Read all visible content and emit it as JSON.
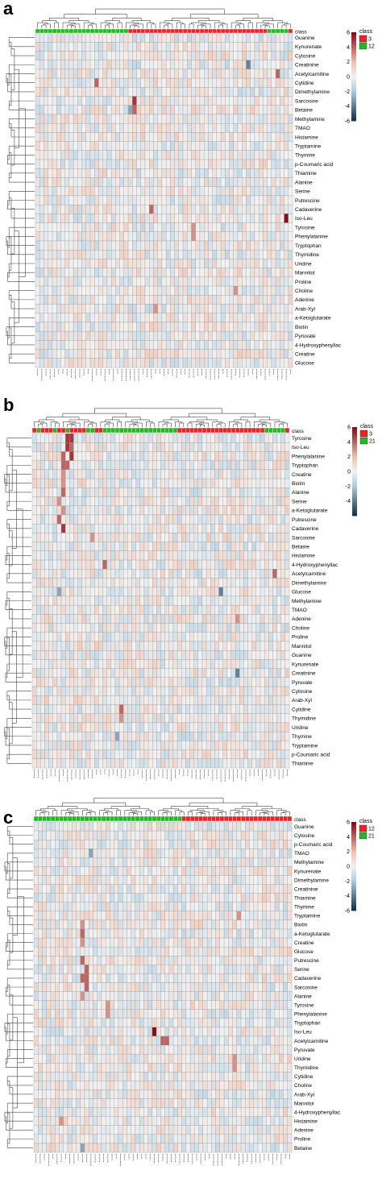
{
  "colors": {
    "scale_high": "#8b0a1a",
    "scale_mid": "#f2f2f2",
    "scale_low": "#17354a",
    "class_red": "#e8262a",
    "class_green": "#26b626",
    "grid": "#9a9a9a"
  },
  "legend": {
    "title": "class"
  },
  "panels": [
    {
      "letter": "a",
      "legend_items": [
        "3",
        "12"
      ],
      "scale_ticks": [
        "6",
        "4",
        "2",
        "0",
        "-2",
        "-4",
        "-6"
      ],
      "chart_data": {
        "type": "heatmap",
        "n_columns": 61,
        "class_bar": [
          "green",
          "green",
          "green",
          "green",
          "green",
          "green",
          "green",
          "green",
          "green",
          "green",
          "green",
          "green",
          "green",
          "green",
          "green",
          "green",
          "green",
          "green",
          "green",
          "green",
          "green",
          "green",
          "red",
          "red",
          "red",
          "red",
          "red",
          "red",
          "red",
          "red",
          "red",
          "red",
          "red",
          "red",
          "red",
          "red",
          "red",
          "red",
          "red",
          "red",
          "red",
          "red",
          "red",
          "red",
          "red",
          "red",
          "red",
          "red",
          "red",
          "red",
          "red",
          "red",
          "red",
          "red",
          "red",
          "green",
          "green",
          "green",
          "green",
          "green",
          "red"
        ],
        "rows": [
          "Guanine",
          "Kynurenate",
          "Cytosine",
          "Creatinine",
          "Acetylcarnitine",
          "Cytidine",
          "Dimethylamine",
          "Sarcosine",
          "Betaine",
          "Methylamine",
          "TMAO",
          "Histamine",
          "Tryptamine",
          "Thymine",
          "p-Coumaric acid",
          "Thiamine",
          "Alanine",
          "Serine",
          "Putrescine",
          "Cadaverine",
          "Iso-Leu",
          "Tyrosine",
          "Phenylalanine",
          "Tryptophan",
          "Thymidine",
          "Uridine",
          "Mannitol",
          "Proline",
          "Choline",
          "Adenine",
          "Arab-Xyl",
          "a-Ketoglutarate",
          "Biotin",
          "Pyruvate",
          "4-Hydroxyphenyllac",
          "Creatine",
          "Glucose"
        ],
        "hot_cells": [
          [
            4,
            57,
            4
          ],
          [
            5,
            14,
            4
          ],
          [
            7,
            23,
            5
          ],
          [
            8,
            23,
            4
          ],
          [
            20,
            59,
            6
          ],
          [
            19,
            27,
            4
          ],
          [
            21,
            37,
            3
          ],
          [
            22,
            37,
            3
          ],
          [
            28,
            47,
            3
          ],
          [
            30,
            28,
            3
          ],
          [
            3,
            50,
            -4
          ],
          [
            8,
            22,
            -3
          ]
        ],
        "seed": 11,
        "value_range": [
          -6,
          6
        ]
      }
    },
    {
      "letter": "b",
      "legend_items": [
        "3",
        "21"
      ],
      "scale_ticks": [
        "6",
        "4",
        "2",
        "0",
        "-2",
        "-4"
      ],
      "chart_data": {
        "type": "heatmap",
        "n_columns": 62,
        "class_bar": [
          "red",
          "green",
          "red",
          "red",
          "red",
          "green",
          "red",
          "red",
          "green",
          "red",
          "red",
          "red",
          "red",
          "green",
          "green",
          "red",
          "red",
          "green",
          "green",
          "green",
          "green",
          "green",
          "green",
          "green",
          "green",
          "green",
          "green",
          "green",
          "green",
          "green",
          "green",
          "green",
          "green",
          "green",
          "green",
          "red",
          "red",
          "red",
          "red",
          "red",
          "red",
          "red",
          "red",
          "red",
          "red",
          "red",
          "red",
          "red",
          "red",
          "red",
          "red",
          "red",
          "red",
          "red",
          "red",
          "red",
          "green",
          "green",
          "green",
          "green",
          "green",
          "red"
        ],
        "rows": [
          "Tyrosine",
          "Iso-Leu",
          "Phenylalanine",
          "Tryptophan",
          "Creatine",
          "Biotin",
          "Alanine",
          "Serine",
          "a-Ketoglutarate",
          "Putrescine",
          "Cadaverine",
          "Sarcosine",
          "Betaine",
          "Histamine",
          "4-Hydroxyphenyllac",
          "Acetylcarnitine",
          "Dimethylamine",
          "Glucose",
          "Methylamine",
          "TMAO",
          "Adenine",
          "Choline",
          "Proline",
          "Mannitol",
          "Guanine",
          "Kynurenate",
          "Creatinine",
          "Pyruvate",
          "Cytosine",
          "Arab-Xyl",
          "Cytidine",
          "Thymidine",
          "Uridine",
          "Thymine",
          "Tryptamine",
          "p-Coumaric acid",
          "Thiamine"
        ],
        "hot_cells": [
          [
            0,
            8,
            5
          ],
          [
            0,
            9,
            5
          ],
          [
            1,
            8,
            5
          ],
          [
            1,
            9,
            4
          ],
          [
            2,
            7,
            4
          ],
          [
            2,
            9,
            5
          ],
          [
            3,
            7,
            4
          ],
          [
            3,
            8,
            4
          ],
          [
            4,
            7,
            3
          ],
          [
            5,
            7,
            3
          ],
          [
            6,
            7,
            4
          ],
          [
            7,
            6,
            3
          ],
          [
            8,
            7,
            3
          ],
          [
            9,
            6,
            4
          ],
          [
            10,
            7,
            5
          ],
          [
            14,
            17,
            4
          ],
          [
            15,
            58,
            4
          ],
          [
            11,
            14,
            3
          ],
          [
            20,
            49,
            3
          ],
          [
            30,
            21,
            4
          ],
          [
            31,
            21,
            3
          ],
          [
            17,
            45,
            -4
          ],
          [
            17,
            6,
            -3
          ],
          [
            26,
            49,
            -4
          ],
          [
            33,
            20,
            -3
          ]
        ],
        "seed": 23,
        "value_range": [
          -6,
          6
        ]
      }
    },
    {
      "letter": "c",
      "legend_items": [
        "12",
        "21"
      ],
      "scale_ticks": [
        "6",
        "4",
        "2",
        "0",
        "-2",
        "-4",
        "-6"
      ],
      "chart_data": {
        "type": "heatmap",
        "n_columns": 61,
        "class_bar": [
          "green",
          "green",
          "green",
          "green",
          "green",
          "green",
          "green",
          "green",
          "green",
          "green",
          "green",
          "green",
          "green",
          "green",
          "green",
          "green",
          "green",
          "green",
          "green",
          "green",
          "green",
          "green",
          "green",
          "green",
          "green",
          "green",
          "green",
          "green",
          "green",
          "green",
          "green",
          "green",
          "green",
          "green",
          "green",
          "red",
          "red",
          "red",
          "red",
          "red",
          "red",
          "red",
          "red",
          "red",
          "red",
          "red",
          "red",
          "red",
          "red",
          "red",
          "red",
          "red",
          "red",
          "red",
          "red",
          "red",
          "red",
          "red",
          "red",
          "red",
          "red"
        ],
        "rows": [
          "Guanine",
          "Cytosine",
          "p-Coumaric acid",
          "TMAO",
          "Methylamine",
          "Kynurenate",
          "Dimethylamine",
          "Creatinine",
          "Thiamine",
          "Thymine",
          "Tryptamine",
          "Biotin",
          "a-Ketoglutarate",
          "Creatine",
          "Glucose",
          "Putrescine",
          "Serine",
          "Cadaverine",
          "Sarcosine",
          "Alanine",
          "Tyrosine",
          "Phenylalanine",
          "Tryptophan",
          "Iso-Leu",
          "Acetylcarnitine",
          "Pyruvate",
          "Uridine",
          "Thymidine",
          "Cytidine",
          "Choline",
          "Arab-Xyl",
          "Mannitol",
          "4-Hydroxyphenyllac",
          "Histamine",
          "Adenine",
          "Proline",
          "Betaine"
        ],
        "hot_cells": [
          [
            11,
            11,
            3
          ],
          [
            12,
            11,
            4
          ],
          [
            13,
            11,
            3
          ],
          [
            15,
            11,
            4
          ],
          [
            16,
            12,
            4
          ],
          [
            17,
            11,
            4
          ],
          [
            17,
            12,
            4
          ],
          [
            18,
            12,
            4
          ],
          [
            19,
            11,
            3
          ],
          [
            20,
            17,
            3
          ],
          [
            21,
            17,
            3
          ],
          [
            23,
            28,
            6
          ],
          [
            24,
            30,
            4
          ],
          [
            24,
            31,
            4
          ],
          [
            26,
            47,
            3
          ],
          [
            27,
            47,
            3
          ],
          [
            10,
            48,
            3
          ],
          [
            33,
            6,
            3
          ],
          [
            36,
            11,
            -3
          ],
          [
            3,
            13,
            -3
          ]
        ],
        "seed": 37,
        "value_range": [
          -6,
          6
        ]
      }
    }
  ]
}
